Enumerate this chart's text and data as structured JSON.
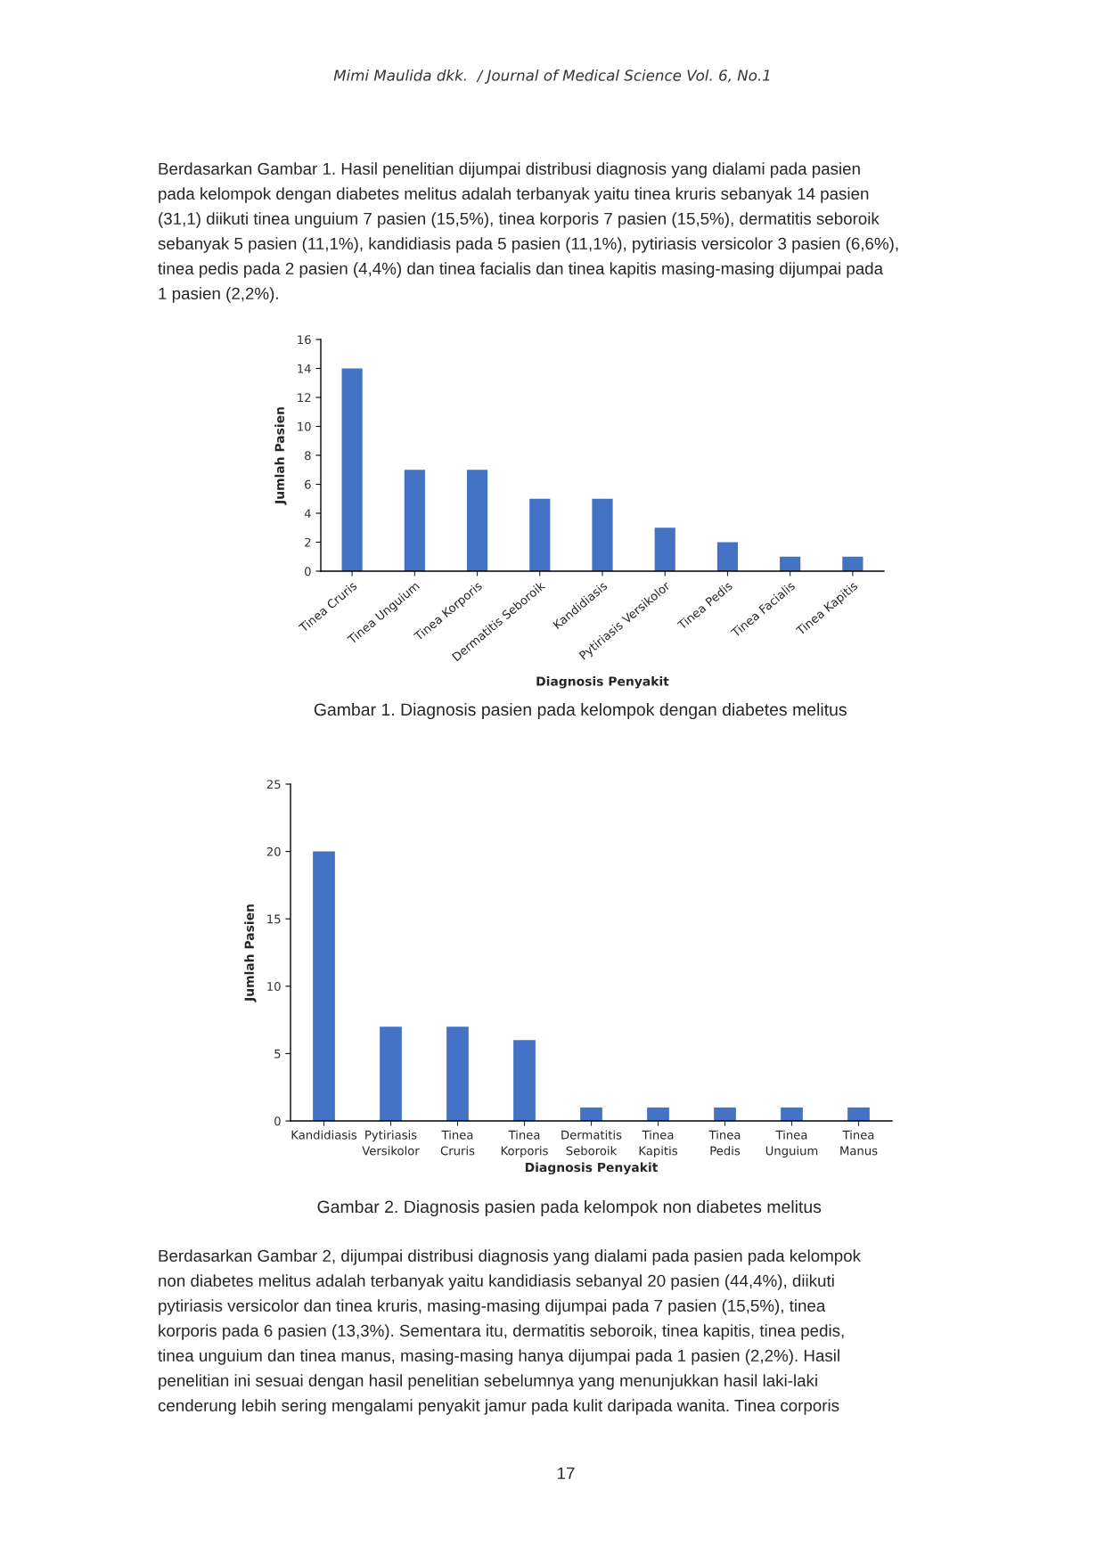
{
  "chart_data": [
    {
      "type": "bar",
      "title": "Gambar 1. Diagnosis pasien pada kelompok dengan diabetes melitus",
      "xlabel": "Diagnosis Penyakit",
      "ylabel": "Jumlah Pasien",
      "categories": [
        "Tinea Cruris",
        "Tinea Unguium",
        "Tinea Korporis",
        "Dermatitis Seboroik",
        "Kandidiasis",
        "Pytiriasis Versikolor",
        "Tinea Pedis",
        "Tinea Facialis",
        "Tinea Kapitis"
      ],
      "values": [
        14,
        7,
        7,
        5,
        5,
        3,
        2,
        1,
        1
      ],
      "color": "#4472c4",
      "ylim": [
        0,
        16
      ],
      "yticks": [
        0,
        2,
        4,
        6,
        8,
        10,
        12,
        14,
        16
      ],
      "grid": false,
      "annotations": [
        "Mimi Maulida dkk.  / Journal of Medical Science Vol. 6, No.1",
        "Berdasarkan Gambar 1. Hasil penelitian dijumpai distribusi diagnosis yang dialami pada pasien",
        "pada kelompok dengan diabetes melitus adalah terbanyak yaitu tinea kruris sebanyak 14 pasien",
        "(31,1) diikuti tinea unguium 7 pasien (15,5%), tinea korporis 7 pasien (15,5%), dermatitis seboroik",
        "sebanyak 5 pasien (11,1%), kandidiasis pada 5 pasien (11,1%), pytiriasis versicolor 3 pasien (6,6%),",
        "tinea pedis pada 2 pasien (4,4%) dan tinea facialis dan tinea kapitis masing-masing dijumpai pada",
        "1 pasien (2,2%)."
      ]
    },
    {
      "type": "bar",
      "title": "Gambar 2. Diagnosis pasien pada kelompok non diabetes melitus",
      "xlabel": "Diagnosis Penyakit",
      "ylabel": "Jumlah Pasien",
      "categories": [
        "Kandidiasis",
        "Pytiriasis Versikolor",
        "Tinea Cruris",
        "Tinea Korporis",
        "Dermatitis Seboroik",
        "Tinea Kapitis",
        "Tinea Pedis",
        "Tinea Unguium",
        "Tinea Manus"
      ],
      "values": [
        20,
        7,
        7,
        6,
        1,
        1,
        1,
        1,
        1
      ],
      "color": "#4472c4",
      "ylim": [
        0,
        25
      ],
      "yticks": [
        0,
        5,
        10,
        15,
        20,
        25
      ],
      "grid": false,
      "annotations": [
        "Berdasarkan Gambar 2, dijumpai distribusi diagnosis yang dialami pada pasien pada kelompok",
        "non diabetes melitus adalah terbanyak yaitu kandidiasis sebanyal 20 pasien (44,4%), diikuti",
        "pytiriasis versicolor dan tinea kruris, masing-masing dijumpai pada 7 pasien (15,5%), tinea",
        "korporis pada 6 pasien (13,3%). Sementara itu, dermatitis seboroik, tinea kapitis, tinea pedis,",
        "tinea unguium dan tinea manus, masing-masing hanya dijumpai pada 1 pasien (2,2%). Hasil",
        "penelitian ini sesuai dengan hasil penelitian sebelumnya yang menunjukkan hasil laki-laki",
        "cenderung lebih sering mengalami penyakit jamur pada kulit daripada wanita. Tinea corporis",
        "17"
      ]
    }
  ]
}
